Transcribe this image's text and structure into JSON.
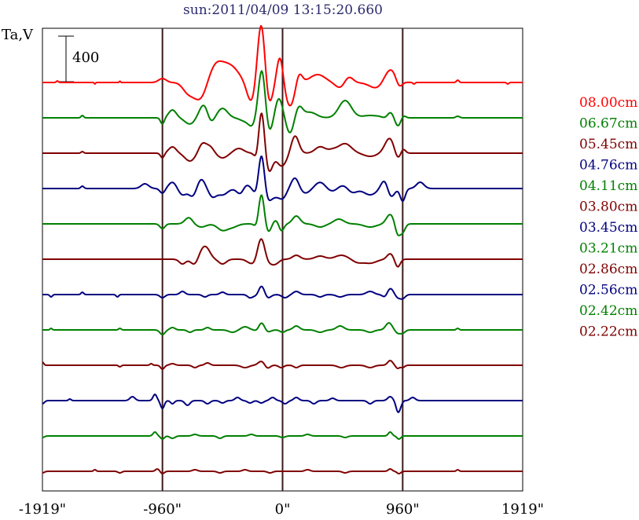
{
  "chart_data": {
    "type": "line",
    "title": "sun:2011/04/09 13:15:20.660",
    "ylabel": "Ta,V",
    "scale_bar_label": "400",
    "scale_bar_value": 400,
    "xlim": [
      -1919,
      1919
    ],
    "vlines": [
      -960,
      0,
      960
    ],
    "x_ticks": [
      {
        "value": -1919,
        "label": "-1919\""
      },
      {
        "value": -960,
        "label": "-960\""
      },
      {
        "value": 0,
        "label": "0\""
      },
      {
        "value": 960,
        "label": "960\""
      },
      {
        "value": 1919,
        "label": "1919\""
      }
    ],
    "colors": {
      "red": "#ff0000",
      "green": "#008000",
      "maroon": "#800000",
      "navy": "#000080"
    },
    "series": [
      {
        "name": "08.00cm",
        "color": "#ff0000",
        "features": [
          [
            -1800,
            8,
            2
          ],
          [
            -1500,
            5,
            -2
          ],
          [
            -1300,
            4,
            2
          ],
          [
            -960,
            30,
            5
          ],
          [
            -760,
            40,
            -10
          ],
          [
            -650,
            60,
            -30
          ],
          [
            -540,
            80,
            28
          ],
          [
            -400,
            60,
            15
          ],
          [
            -250,
            35,
            -25
          ],
          [
            -170,
            30,
            78
          ],
          [
            -110,
            30,
            -30
          ],
          [
            -20,
            25,
            35
          ],
          [
            60,
            40,
            -30
          ],
          [
            130,
            25,
            15
          ],
          [
            280,
            60,
            10
          ],
          [
            500,
            50,
            -18
          ],
          [
            520,
            40,
            22
          ],
          [
            760,
            60,
            -8
          ],
          [
            860,
            50,
            18
          ],
          [
            930,
            25,
            -10
          ],
          [
            1050,
            8,
            -2
          ],
          [
            1400,
            10,
            3
          ],
          [
            1800,
            8,
            -2
          ]
        ]
      },
      {
        "name": "06.67cm",
        "color": "#008000",
        "features": [
          [
            -1600,
            10,
            3
          ],
          [
            -960,
            15,
            -8
          ],
          [
            -880,
            30,
            10
          ],
          [
            -740,
            40,
            -8
          ],
          [
            -620,
            40,
            20
          ],
          [
            -580,
            30,
            -14
          ],
          [
            -480,
            40,
            12
          ],
          [
            -300,
            40,
            -4
          ],
          [
            -240,
            30,
            -10
          ],
          [
            -190,
            25,
            -18
          ],
          [
            -170,
            30,
            76
          ],
          [
            -110,
            30,
            -22
          ],
          [
            -30,
            30,
            25
          ],
          [
            60,
            30,
            -20
          ],
          [
            130,
            30,
            14
          ],
          [
            220,
            50,
            7
          ],
          [
            500,
            50,
            22
          ],
          [
            700,
            60,
            3
          ],
          [
            830,
            30,
            -12
          ],
          [
            850,
            40,
            16
          ],
          [
            920,
            30,
            -14
          ],
          [
            960,
            20,
            6
          ],
          [
            1400,
            15,
            2
          ]
        ]
      },
      {
        "name": "05.45cm",
        "color": "#800000",
        "features": [
          [
            -1600,
            10,
            2
          ],
          [
            -960,
            15,
            -6
          ],
          [
            -880,
            30,
            8
          ],
          [
            -740,
            40,
            -10
          ],
          [
            -640,
            30,
            12
          ],
          [
            -580,
            30,
            8
          ],
          [
            -480,
            40,
            -6
          ],
          [
            -350,
            40,
            6
          ],
          [
            -200,
            20,
            -18
          ],
          [
            -170,
            25,
            60
          ],
          [
            -110,
            30,
            -25
          ],
          [
            -20,
            30,
            -12
          ],
          [
            20,
            30,
            -8
          ],
          [
            100,
            30,
            22
          ],
          [
            300,
            40,
            8
          ],
          [
            400,
            40,
            4
          ],
          [
            500,
            50,
            12
          ],
          [
            700,
            50,
            -4
          ],
          [
            860,
            40,
            20
          ],
          [
            920,
            30,
            -12
          ],
          [
            960,
            20,
            8
          ]
        ]
      },
      {
        "name": "04.76cm",
        "color": "#000080",
        "features": [
          [
            -1600,
            12,
            3
          ],
          [
            -1100,
            30,
            6
          ],
          [
            -960,
            20,
            -6
          ],
          [
            -880,
            30,
            8
          ],
          [
            -800,
            30,
            -8
          ],
          [
            -720,
            30,
            -10
          ],
          [
            -650,
            30,
            12
          ],
          [
            -560,
            30,
            -10
          ],
          [
            -480,
            40,
            -8
          ],
          [
            -330,
            30,
            -10
          ],
          [
            -300,
            30,
            8
          ],
          [
            -200,
            25,
            -14
          ],
          [
            -170,
            25,
            52
          ],
          [
            -120,
            30,
            -16
          ],
          [
            -60,
            30,
            -8
          ],
          [
            0,
            30,
            -12
          ],
          [
            100,
            30,
            14
          ],
          [
            180,
            40,
            -6
          ],
          [
            300,
            40,
            8
          ],
          [
            400,
            40,
            -4
          ],
          [
            500,
            50,
            6
          ],
          [
            550,
            40,
            -8
          ],
          [
            700,
            50,
            -8
          ],
          [
            820,
            30,
            14
          ],
          [
            860,
            30,
            -14
          ],
          [
            960,
            20,
            -16
          ],
          [
            1100,
            30,
            8
          ]
        ]
      },
      {
        "name": "04.11cm",
        "color": "#008000",
        "features": [
          [
            -960,
            20,
            -6
          ],
          [
            -750,
            30,
            8
          ],
          [
            -650,
            40,
            -4
          ],
          [
            -480,
            40,
            -8
          ],
          [
            -400,
            40,
            -4
          ],
          [
            -200,
            20,
            -12
          ],
          [
            -170,
            25,
            44
          ],
          [
            -120,
            30,
            -14
          ],
          [
            -60,
            30,
            6
          ],
          [
            -10,
            20,
            -10
          ],
          [
            110,
            30,
            10
          ],
          [
            300,
            40,
            -4
          ],
          [
            450,
            40,
            6
          ],
          [
            700,
            50,
            -4
          ],
          [
            860,
            30,
            12
          ],
          [
            920,
            20,
            -14
          ],
          [
            960,
            20,
            -10
          ]
        ]
      },
      {
        "name": "03.80cm",
        "color": "#800000",
        "features": [
          [
            -800,
            25,
            -6
          ],
          [
            -700,
            30,
            -8
          ],
          [
            -640,
            35,
            12
          ],
          [
            -600,
            30,
            8
          ],
          [
            -480,
            30,
            -6
          ],
          [
            -260,
            30,
            -4
          ],
          [
            -220,
            25,
            -5
          ],
          [
            -170,
            30,
            28
          ],
          [
            -120,
            30,
            -6
          ],
          [
            -60,
            30,
            -6
          ],
          [
            110,
            30,
            5
          ],
          [
            300,
            40,
            4
          ],
          [
            470,
            50,
            5
          ],
          [
            600,
            40,
            -4
          ],
          [
            700,
            50,
            -5
          ],
          [
            860,
            25,
            7
          ],
          [
            920,
            20,
            -10
          ]
        ]
      },
      {
        "name": "03.45cm",
        "color": "#000080",
        "features": [
          [
            -1850,
            10,
            -3
          ],
          [
            -1600,
            10,
            3
          ],
          [
            -1320,
            10,
            -3
          ],
          [
            -960,
            20,
            -4
          ],
          [
            -800,
            20,
            4
          ],
          [
            -620,
            20,
            -3
          ],
          [
            -480,
            20,
            3
          ],
          [
            -260,
            20,
            -4
          ],
          [
            -200,
            25,
            -4
          ],
          [
            -170,
            25,
            13
          ],
          [
            -120,
            25,
            -5
          ],
          [
            20,
            25,
            -4
          ],
          [
            110,
            25,
            4
          ],
          [
            300,
            25,
            -3
          ],
          [
            460,
            30,
            -3
          ],
          [
            700,
            30,
            4
          ],
          [
            820,
            20,
            -4
          ],
          [
            860,
            25,
            8
          ],
          [
            920,
            20,
            -4
          ],
          [
            960,
            20,
            -5
          ]
        ]
      },
      {
        "name": "03.21cm",
        "color": "#008000",
        "features": [
          [
            -1850,
            8,
            2
          ],
          [
            -1300,
            10,
            2
          ],
          [
            -960,
            20,
            -6
          ],
          [
            -880,
            20,
            3
          ],
          [
            -740,
            20,
            -3
          ],
          [
            -600,
            20,
            3
          ],
          [
            -400,
            30,
            -3
          ],
          [
            -300,
            30,
            4
          ],
          [
            -200,
            20,
            -3
          ],
          [
            -170,
            25,
            10
          ],
          [
            -120,
            25,
            -3
          ],
          [
            0,
            20,
            -3
          ],
          [
            110,
            25,
            5
          ],
          [
            300,
            30,
            -3
          ],
          [
            460,
            30,
            5
          ],
          [
            700,
            30,
            -3
          ],
          [
            850,
            25,
            9
          ],
          [
            920,
            20,
            -4
          ],
          [
            960,
            20,
            -4
          ],
          [
            1400,
            10,
            2
          ]
        ]
      },
      {
        "name": "02.86cm",
        "color": "#800000",
        "features": [
          [
            -1919,
            10,
            4
          ],
          [
            -1300,
            10,
            -2
          ],
          [
            -1050,
            10,
            2
          ],
          [
            -960,
            15,
            -5
          ],
          [
            -880,
            20,
            2
          ],
          [
            -700,
            20,
            -3
          ],
          [
            -600,
            20,
            3
          ],
          [
            -300,
            30,
            -3
          ],
          [
            -170,
            25,
            5
          ],
          [
            -120,
            20,
            -4
          ],
          [
            -10,
            20,
            -3
          ],
          [
            110,
            20,
            -3
          ],
          [
            470,
            30,
            -3
          ],
          [
            700,
            30,
            -3
          ],
          [
            860,
            20,
            6
          ],
          [
            920,
            15,
            -4
          ],
          [
            960,
            15,
            -3
          ]
        ]
      },
      {
        "name": "02.56cm",
        "color": "#000080",
        "features": [
          [
            -1919,
            15,
            -4
          ],
          [
            -1700,
            10,
            2
          ],
          [
            -1200,
            20,
            5
          ],
          [
            -1020,
            15,
            8
          ],
          [
            -960,
            15,
            -10
          ],
          [
            -880,
            15,
            -4
          ],
          [
            -760,
            20,
            -6
          ],
          [
            -600,
            20,
            -4
          ],
          [
            -480,
            20,
            -3
          ],
          [
            -360,
            20,
            4
          ],
          [
            -260,
            20,
            -3
          ],
          [
            -170,
            20,
            -3
          ],
          [
            -80,
            20,
            4
          ],
          [
            20,
            20,
            -4
          ],
          [
            110,
            20,
            4
          ],
          [
            250,
            20,
            -4
          ],
          [
            400,
            20,
            3
          ],
          [
            700,
            20,
            -4
          ],
          [
            860,
            20,
            5
          ],
          [
            920,
            15,
            -12
          ],
          [
            940,
            15,
            -6
          ],
          [
            1040,
            20,
            4
          ]
        ]
      },
      {
        "name": "02.42cm",
        "color": "#008000",
        "features": [
          [
            -1919,
            15,
            -2
          ],
          [
            -1020,
            15,
            5
          ],
          [
            -960,
            15,
            -4
          ],
          [
            -880,
            20,
            -3
          ],
          [
            -700,
            20,
            2
          ],
          [
            -500,
            20,
            -3
          ],
          [
            -250,
            20,
            2
          ],
          [
            0,
            20,
            -2
          ],
          [
            200,
            20,
            2
          ],
          [
            500,
            20,
            -2
          ],
          [
            860,
            15,
            5
          ],
          [
            930,
            15,
            -4
          ]
        ]
      },
      {
        "name": "02.22cm",
        "color": "#800000",
        "features": [
          [
            -1919,
            15,
            -2
          ],
          [
            -1500,
            10,
            2
          ],
          [
            -1300,
            15,
            -2
          ],
          [
            -1000,
            15,
            3
          ],
          [
            -960,
            15,
            -3
          ],
          [
            -700,
            20,
            2
          ],
          [
            -500,
            20,
            -2
          ],
          [
            -300,
            20,
            2
          ],
          [
            -100,
            20,
            -2
          ],
          [
            200,
            20,
            2
          ],
          [
            500,
            20,
            -2
          ],
          [
            860,
            15,
            3
          ],
          [
            930,
            15,
            -3
          ],
          [
            1400,
            10,
            2
          ]
        ]
      }
    ]
  }
}
